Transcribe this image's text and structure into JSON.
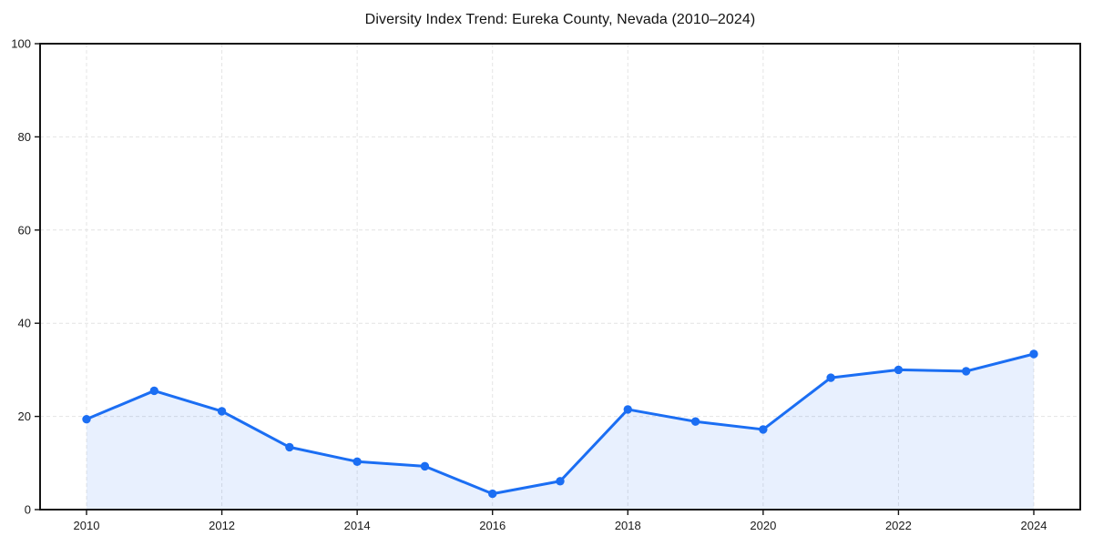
{
  "window": {
    "background_color": "#ffffff"
  },
  "chart_data": {
    "type": "line",
    "title": "Diversity Index Trend: Eureka County, Nevada (2010–2024)",
    "x": [
      2010,
      2011,
      2012,
      2013,
      2014,
      2015,
      2016,
      2017,
      2018,
      2019,
      2020,
      2021,
      2022,
      2023,
      2024
    ],
    "values": [
      19.4,
      25.5,
      21.1,
      13.4,
      10.3,
      9.3,
      3.4,
      6.1,
      21.5,
      18.9,
      17.2,
      28.3,
      30.0,
      29.7,
      33.4
    ],
    "xticks": [
      2010,
      2012,
      2014,
      2016,
      2018,
      2020,
      2022,
      2024
    ],
    "yticks": [
      0,
      20,
      40,
      60,
      80,
      100
    ],
    "ylim": [
      0,
      100
    ],
    "xlabel": "",
    "ylabel": "",
    "legend": "none",
    "grid": true,
    "grid_style": "dashed",
    "area_fill": true,
    "colors": {
      "line": "#1b6ef3",
      "marker": "#1b6ef3",
      "area": "rgba(27,110,243,0.10)",
      "grid": "#e4e4e4",
      "axis": "#141414",
      "tick_label": "#1a1a1a",
      "title": "#111111"
    }
  }
}
